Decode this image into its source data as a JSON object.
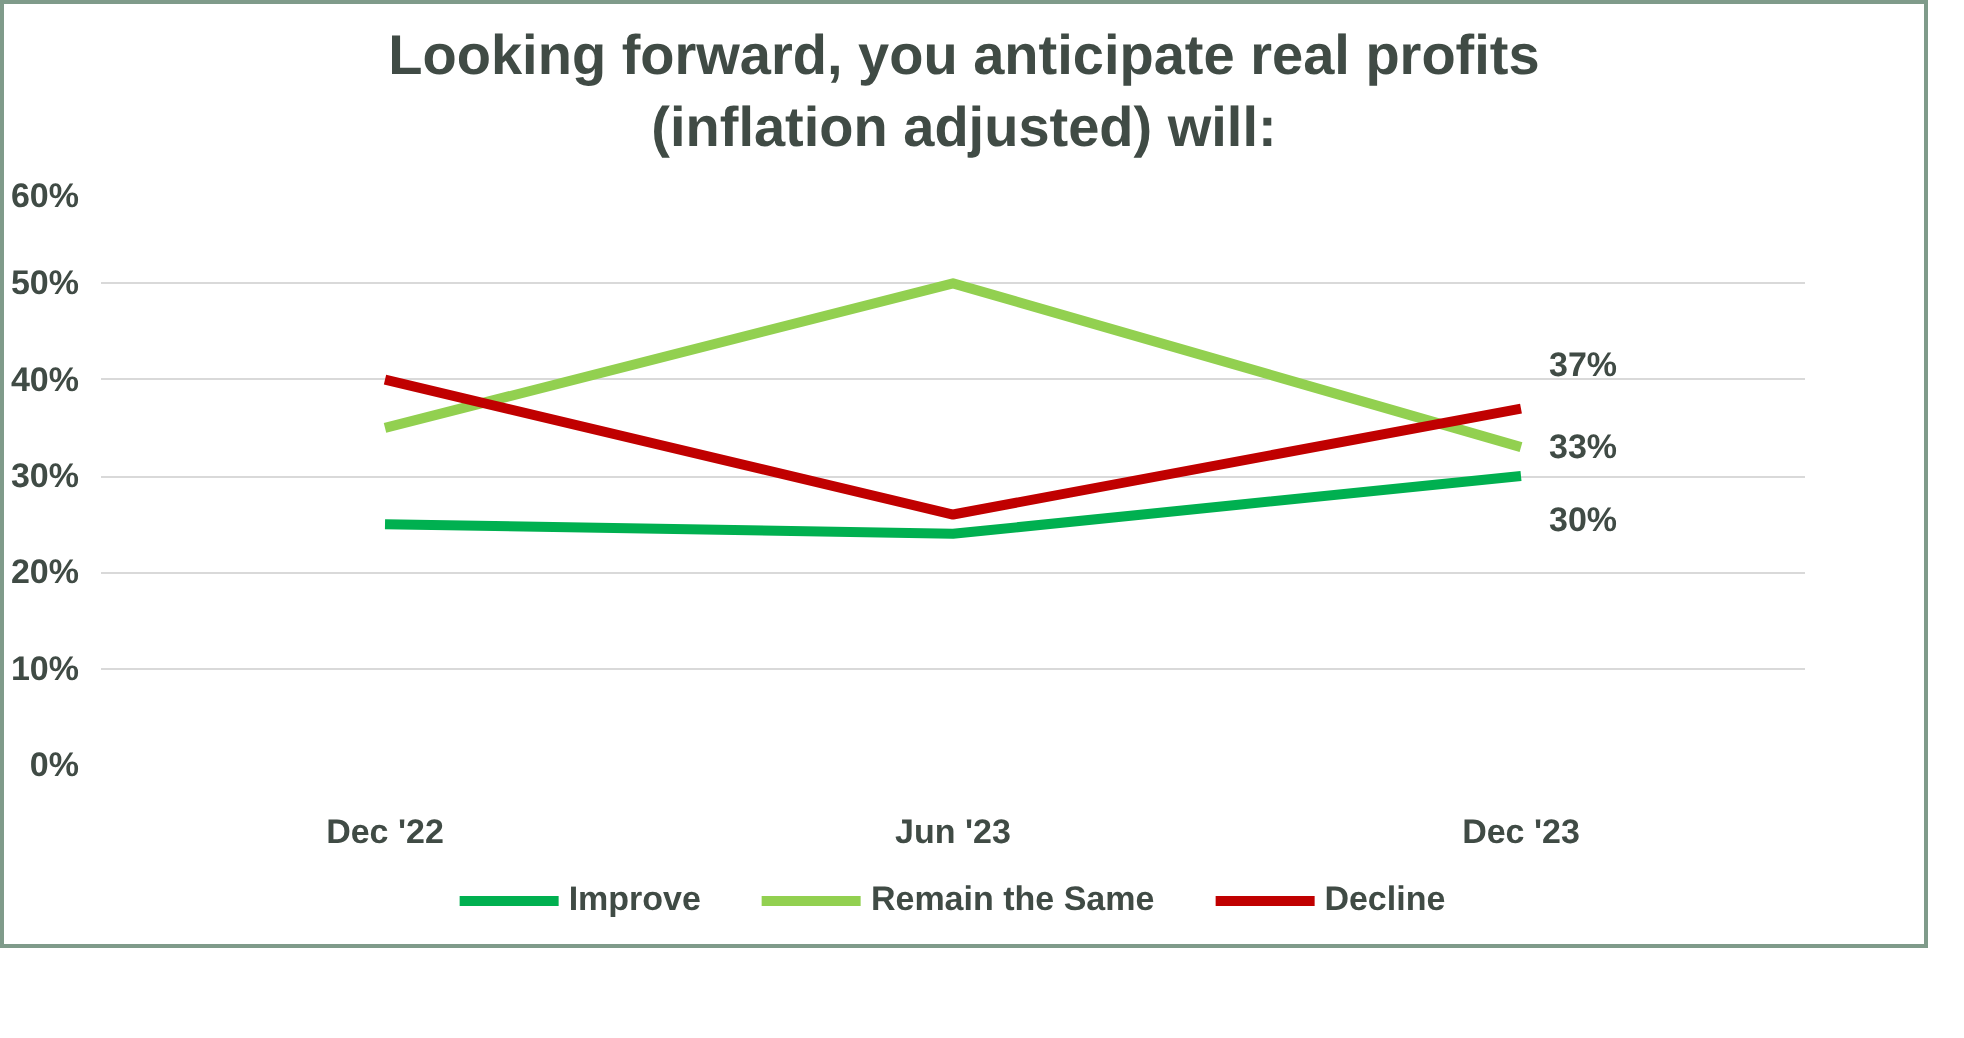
{
  "chart_data": {
    "type": "line",
    "title": "Looking forward, you anticipate real profits\n(inflation adjusted) will:",
    "categories": [
      "Dec '22",
      "Jun '23",
      "Dec '23"
    ],
    "series": [
      {
        "name": "Improve",
        "color": "#00b050",
        "values": [
          25,
          24,
          30
        ],
        "value_labels": [
          null,
          null,
          "30%"
        ]
      },
      {
        "name": "Remain the Same",
        "color": "#92d050",
        "values": [
          35,
          50,
          33
        ],
        "value_labels": [
          null,
          null,
          "33%"
        ]
      },
      {
        "name": "Decline",
        "color": "#c00000",
        "values": [
          40,
          26,
          37
        ],
        "value_labels": [
          null,
          null,
          "37%"
        ]
      }
    ],
    "ylim": [
      0,
      60
    ],
    "yticks": [
      {
        "value": 0,
        "label": "0%"
      },
      {
        "value": 10,
        "label": "10%"
      },
      {
        "value": 20,
        "label": "20%"
      },
      {
        "value": 30,
        "label": "30%"
      },
      {
        "value": 40,
        "label": "40%"
      },
      {
        "value": 50,
        "label": "50%"
      },
      {
        "value": 60,
        "label": "60%"
      }
    ],
    "grid": "y",
    "legend": "bottom",
    "marker": "none",
    "line_style": "solid"
  }
}
